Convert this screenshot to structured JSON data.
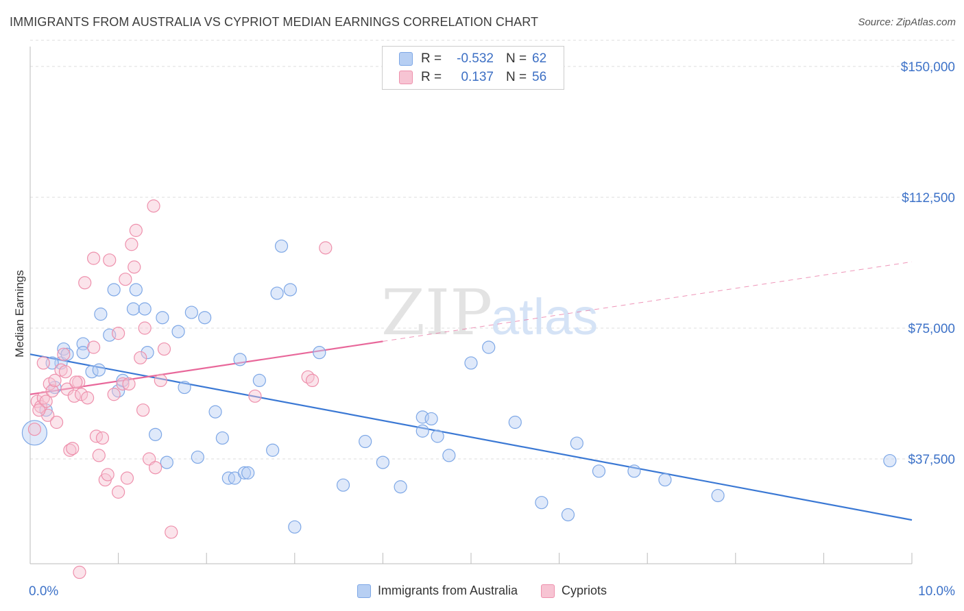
{
  "title": "IMMIGRANTS FROM AUSTRALIA VS CYPRIOT MEDIAN EARNINGS CORRELATION CHART",
  "source": "Source: ZipAtlas.com",
  "watermark": {
    "zip": "ZIP",
    "atlas": "atlas"
  },
  "stats": [
    {
      "r_label": "R =",
      "r_value": "-0.532",
      "n_label": "N =",
      "n_value": "62"
    },
    {
      "r_label": "R =",
      "r_value": "0.137",
      "n_label": "N =",
      "n_value": "56"
    }
  ],
  "chart_data": {
    "type": "scatter",
    "title": "IMMIGRANTS FROM AUSTRALIA VS CYPRIOT MEDIAN EARNINGS CORRELATION CHART",
    "xlabel": "",
    "ylabel": "Median Earnings",
    "xlim": [
      0,
      10
    ],
    "ylim": [
      0,
      157500
    ],
    "x_tick_labels": [
      "0.0%",
      "10.0%"
    ],
    "y_ticks": [
      37500,
      75000,
      112500,
      150000
    ],
    "y_tick_labels": [
      "$37,500",
      "$75,000",
      "$112,500",
      "$150,000"
    ],
    "grid": true,
    "legend_position": "bottom",
    "colors": {
      "blue": "#3a78d4",
      "pink": "#e8679a",
      "axis_label": "#3d72c8"
    },
    "series": [
      {
        "name": "Immigrants from Australia",
        "color": "#7da7e6",
        "trend": {
          "x": [
            0,
            10
          ],
          "y": [
            67500,
            20000
          ]
        },
        "points": [
          [
            0.05,
            45000
          ],
          [
            0.18,
            51500
          ],
          [
            0.28,
            58000
          ],
          [
            0.35,
            65000
          ],
          [
            0.38,
            69000
          ],
          [
            0.42,
            67500
          ],
          [
            0.6,
            70500
          ],
          [
            0.6,
            68000
          ],
          [
            0.7,
            62500
          ],
          [
            0.78,
            63000
          ],
          [
            0.8,
            79000
          ],
          [
            0.9,
            73000
          ],
          [
            0.95,
            86000
          ],
          [
            1.0,
            57000
          ],
          [
            1.05,
            60000
          ],
          [
            1.17,
            80500
          ],
          [
            1.2,
            86000
          ],
          [
            1.3,
            80500
          ],
          [
            1.33,
            68000
          ],
          [
            1.42,
            44500
          ],
          [
            1.5,
            78000
          ],
          [
            1.55,
            36500
          ],
          [
            1.68,
            74000
          ],
          [
            1.75,
            58000
          ],
          [
            1.83,
            79500
          ],
          [
            1.9,
            38000
          ],
          [
            1.98,
            78000
          ],
          [
            2.1,
            51000
          ],
          [
            2.18,
            43500
          ],
          [
            2.25,
            32000
          ],
          [
            2.32,
            32000
          ],
          [
            2.38,
            66000
          ],
          [
            2.43,
            33500
          ],
          [
            2.47,
            33500
          ],
          [
            2.6,
            60000
          ],
          [
            2.75,
            40000
          ],
          [
            2.8,
            85000
          ],
          [
            2.85,
            98500
          ],
          [
            2.95,
            86000
          ],
          [
            3.0,
            18000
          ],
          [
            3.28,
            68000
          ],
          [
            3.55,
            30000
          ],
          [
            3.8,
            42500
          ],
          [
            4.0,
            36500
          ],
          [
            4.2,
            29500
          ],
          [
            4.45,
            49500
          ],
          [
            4.45,
            45500
          ],
          [
            4.55,
            49000
          ],
          [
            4.62,
            44000
          ],
          [
            4.75,
            38500
          ],
          [
            5.0,
            65000
          ],
          [
            5.2,
            69500
          ],
          [
            5.5,
            48000
          ],
          [
            5.8,
            25000
          ],
          [
            6.1,
            21500
          ],
          [
            6.2,
            42000
          ],
          [
            6.45,
            34000
          ],
          [
            6.85,
            34000
          ],
          [
            7.2,
            31500
          ],
          [
            7.8,
            27000
          ],
          [
            9.75,
            37000
          ],
          [
            0.25,
            65000
          ]
        ]
      },
      {
        "name": "Cypriots",
        "color": "#ee90ac",
        "trend": {
          "x": [
            0,
            4.0,
            10
          ],
          "y": [
            56000,
            71200,
            94000
          ],
          "solid_until": 4.0
        },
        "points": [
          [
            0.05,
            46000
          ],
          [
            0.08,
            54000
          ],
          [
            0.12,
            52500
          ],
          [
            0.15,
            55000
          ],
          [
            0.18,
            54000
          ],
          [
            0.2,
            50000
          ],
          [
            0.22,
            59000
          ],
          [
            0.25,
            57000
          ],
          [
            0.28,
            60000
          ],
          [
            0.3,
            48000
          ],
          [
            0.35,
            63000
          ],
          [
            0.38,
            67500
          ],
          [
            0.4,
            62500
          ],
          [
            0.42,
            57500
          ],
          [
            0.45,
            40000
          ],
          [
            0.5,
            55500
          ],
          [
            0.55,
            59500
          ],
          [
            0.58,
            56000
          ],
          [
            0.62,
            88000
          ],
          [
            0.65,
            55000
          ],
          [
            0.72,
            95000
          ],
          [
            0.75,
            44000
          ],
          [
            0.78,
            38500
          ],
          [
            0.82,
            43500
          ],
          [
            0.85,
            31500
          ],
          [
            0.88,
            33000
          ],
          [
            0.9,
            94500
          ],
          [
            0.95,
            56000
          ],
          [
            1.0,
            73500
          ],
          [
            1.05,
            59000
          ],
          [
            1.08,
            89000
          ],
          [
            1.1,
            32000
          ],
          [
            1.12,
            59000
          ],
          [
            1.15,
            99000
          ],
          [
            1.18,
            92500
          ],
          [
            1.2,
            103000
          ],
          [
            1.25,
            66500
          ],
          [
            1.28,
            51500
          ],
          [
            1.3,
            75000
          ],
          [
            1.35,
            37500
          ],
          [
            1.42,
            35000
          ],
          [
            1.48,
            60000
          ],
          [
            1.52,
            69000
          ],
          [
            1.6,
            16500
          ],
          [
            2.55,
            55500
          ],
          [
            3.15,
            61000
          ],
          [
            3.2,
            60000
          ],
          [
            3.35,
            98000
          ],
          [
            0.1,
            51500
          ],
          [
            0.48,
            40500
          ],
          [
            0.52,
            59500
          ],
          [
            0.56,
            5000
          ],
          [
            1.4,
            110000
          ],
          [
            0.72,
            69500
          ],
          [
            0.15,
            65000
          ],
          [
            1.0,
            28000
          ]
        ]
      }
    ]
  }
}
